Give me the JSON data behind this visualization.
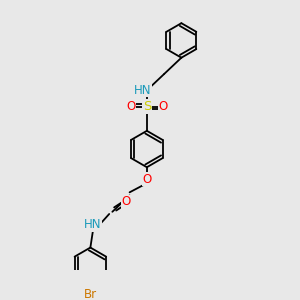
{
  "background_color": "#e8e8e8",
  "bond_color": "#000000",
  "atom_colors": {
    "N": "#1a9aba",
    "O": "#ff0000",
    "S": "#cccc00",
    "Br": "#cc7700",
    "C": "#000000"
  },
  "figsize": [
    3.0,
    3.0
  ],
  "dpi": 100
}
